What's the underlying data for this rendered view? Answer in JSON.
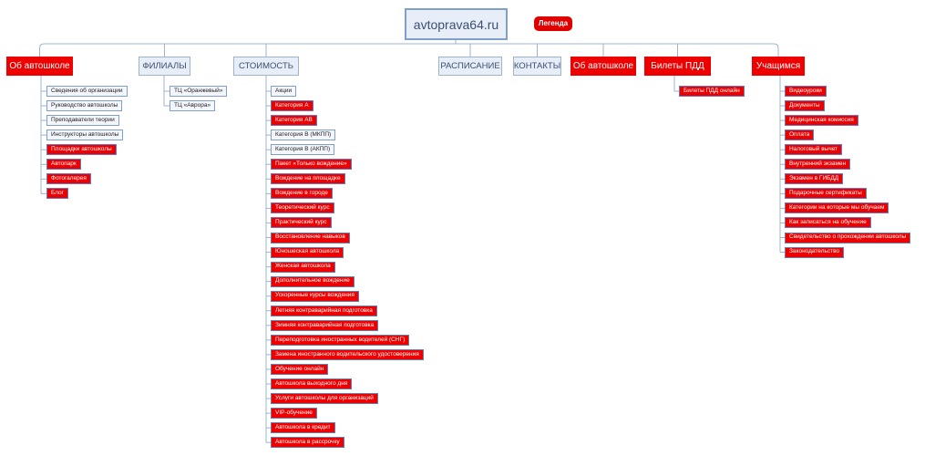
{
  "root": {
    "label": "avtoprava64.ru"
  },
  "legend": {
    "label": "Легенда"
  },
  "colors": {
    "red": "#ee0000",
    "grey": "#e8eef7",
    "line": "#9fb3cf",
    "leaf_border": "#7f9fcc"
  },
  "branches": [
    {
      "id": "about",
      "label": "Об автошколе",
      "style": "red",
      "children": [
        {
          "label": "Сведения об организации",
          "style": "white"
        },
        {
          "label": "Руководство автошколы",
          "style": "white"
        },
        {
          "label": "Преподаватели теории",
          "style": "white"
        },
        {
          "label": "Инструкторы автошколы",
          "style": "white"
        },
        {
          "label": "Площадки автошколы",
          "style": "red"
        },
        {
          "label": "Автопарк",
          "style": "red"
        },
        {
          "label": "Фотогалерея",
          "style": "red"
        },
        {
          "label": "Блог",
          "style": "red"
        }
      ]
    },
    {
      "id": "branches",
      "label": "ФИЛИАЛЫ",
      "style": "grey",
      "children": [
        {
          "label": "ТЦ «Оранжевый»",
          "style": "white"
        },
        {
          "label": "ТЦ «Аврора»",
          "style": "white"
        }
      ]
    },
    {
      "id": "price",
      "label": "СТОИМОСТЬ",
      "style": "grey",
      "children": [
        {
          "label": "Акции",
          "style": "white"
        },
        {
          "label": "Категория А",
          "style": "red"
        },
        {
          "label": "Категория АВ",
          "style": "red"
        },
        {
          "label": "Категория В (МКПП)",
          "style": "white"
        },
        {
          "label": "Категория В (АКПП)",
          "style": "white"
        },
        {
          "label": "Пакет «Только вождение»",
          "style": "red"
        },
        {
          "label": "Вождение на площадке",
          "style": "red"
        },
        {
          "label": "Вождение в городе",
          "style": "red"
        },
        {
          "label": "Теоретический курс",
          "style": "red"
        },
        {
          "label": "Практический курс",
          "style": "red"
        },
        {
          "label": "Восстановление навыков",
          "style": "red"
        },
        {
          "label": "Юношеская автошкола",
          "style": "red"
        },
        {
          "label": "Женская автошкола",
          "style": "red"
        },
        {
          "label": "Дополнительное вождение",
          "style": "red"
        },
        {
          "label": "Ускоренные курсы вождения",
          "style": "red"
        },
        {
          "label": "Летняя контраварийная подготовка",
          "style": "red"
        },
        {
          "label": "Зимняя контраварийная подготовка",
          "style": "red"
        },
        {
          "label": "Переподготовка иностранных водителей (СНГ)",
          "style": "red"
        },
        {
          "label": "Замена иностранного водительского удостоверения",
          "style": "red"
        },
        {
          "label": "Обучение онлайн",
          "style": "red"
        },
        {
          "label": "Автошкола выходного дня",
          "style": "red"
        },
        {
          "label": "Услуги автошколы для организаций",
          "style": "red"
        },
        {
          "label": "VIP-обучение",
          "style": "red"
        },
        {
          "label": "Автошкола в кредит",
          "style": "red"
        },
        {
          "label": "Автошкола в рассрочку",
          "style": "red"
        }
      ]
    },
    {
      "id": "schedule",
      "label": "РАСПИСАНИЕ",
      "style": "grey",
      "children": []
    },
    {
      "id": "contacts",
      "label": "КОНТАКТЫ",
      "style": "grey",
      "children": []
    },
    {
      "id": "about2",
      "label": "Об автошколе",
      "style": "red",
      "children": []
    },
    {
      "id": "tickets",
      "label": "Билеты ПДД",
      "style": "red",
      "children": [
        {
          "label": "Билеты ПДД онлайн",
          "style": "red"
        }
      ]
    },
    {
      "id": "students",
      "label": "Учащимся",
      "style": "red",
      "children": [
        {
          "label": "Видеоуроки",
          "style": "red"
        },
        {
          "label": "Документы",
          "style": "red"
        },
        {
          "label": "Медицинская комиссия",
          "style": "red"
        },
        {
          "label": "Оплата",
          "style": "red"
        },
        {
          "label": "Налоговый вычет",
          "style": "red"
        },
        {
          "label": "Внутренний экзамен",
          "style": "red"
        },
        {
          "label": "Экзамен в ГИБДД",
          "style": "red"
        },
        {
          "label": "Подарочные сертификаты",
          "style": "red"
        },
        {
          "label": "Категории на которые мы обучаем",
          "style": "red"
        },
        {
          "label": "Как записаться на обучение",
          "style": "red"
        },
        {
          "label": "Свидетельство о прохождении автошколы",
          "style": "red"
        },
        {
          "label": "Законодательство",
          "style": "red"
        }
      ]
    }
  ]
}
